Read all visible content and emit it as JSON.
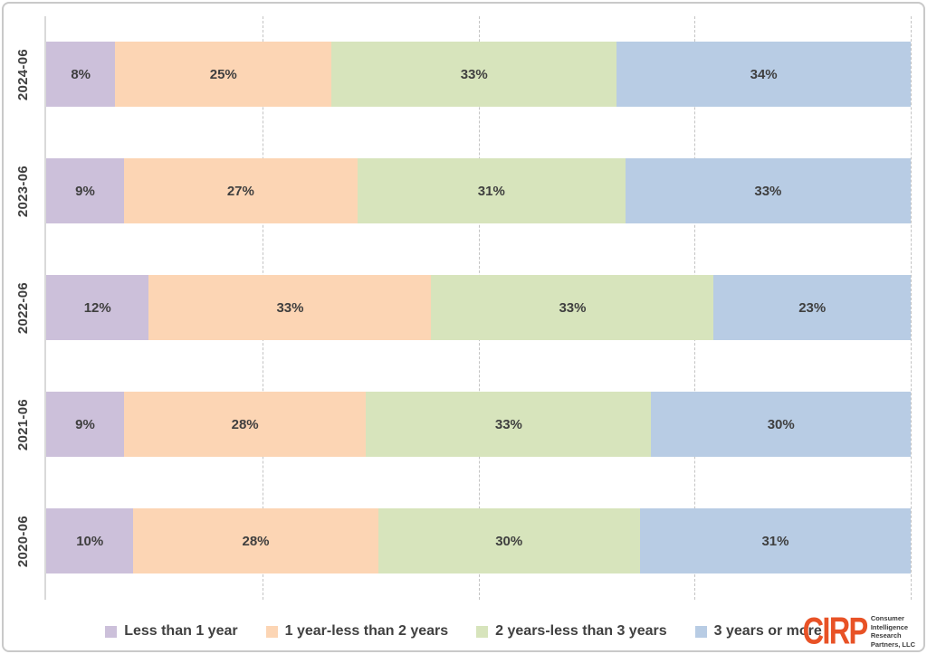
{
  "chart_data": {
    "type": "bar",
    "variant": "100-percent-stacked-horizontal",
    "categories": [
      "2024-06",
      "2023-06",
      "2022-06",
      "2021-06",
      "2020-06"
    ],
    "series": [
      {
        "name": "Less than 1 year",
        "color": "#ccc0da",
        "values": [
          8,
          9,
          12,
          9,
          10
        ]
      },
      {
        "name": "1 year-less than 2 years",
        "color": "#fcd5b4",
        "values": [
          25,
          27,
          33,
          28,
          28
        ]
      },
      {
        "name": "2 years-less than 3 years",
        "color": "#d7e4bc",
        "values": [
          33,
          31,
          33,
          33,
          30
        ]
      },
      {
        "name": "3 years or more",
        "color": "#b8cce4",
        "values": [
          34,
          33,
          23,
          30,
          31
        ]
      }
    ],
    "value_suffix": "%",
    "xlim": [
      0,
      100
    ],
    "gridlines_percent": [
      25,
      50,
      75,
      100
    ],
    "grid_style": "dashed",
    "legend_position": "bottom",
    "title": "",
    "xlabel": "",
    "ylabel": ""
  },
  "legend": {
    "items": [
      {
        "label": "Less than 1 year",
        "color": "#ccc0da"
      },
      {
        "label": "1 year-less than 2 years",
        "color": "#fcd5b4"
      },
      {
        "label": "2 years-less than 3 years",
        "color": "#d7e4bc"
      },
      {
        "label": "3 years or more",
        "color": "#b8cce4"
      }
    ]
  },
  "logo": {
    "brand": "CIRP",
    "brand_color": "#e85226",
    "lines": [
      "Consumer",
      "Intelligence",
      "Research",
      "Partners, LLC"
    ]
  }
}
